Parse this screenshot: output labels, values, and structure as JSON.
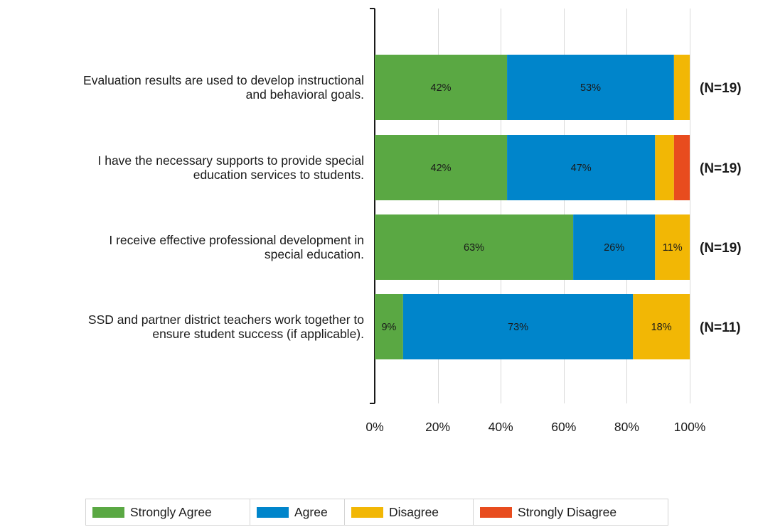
{
  "chart_data": {
    "type": "bar",
    "orientation": "horizontal",
    "stacked": true,
    "categories": [
      [
        "Evaluation results are used to develop instructional",
        "and behavioral goals."
      ],
      [
        "I have the necessary supports to provide special",
        "education services to students."
      ],
      [
        "I receive effective professional development in",
        "special education."
      ],
      [
        "SSD and partner district teachers work together to",
        "ensure student success (if applicable)."
      ]
    ],
    "series": [
      {
        "name": "Strongly Agree",
        "color": "#5aa843",
        "values": [
          42,
          42,
          63,
          9
        ]
      },
      {
        "name": "Agree",
        "color": "#0085cb",
        "values": [
          53,
          47,
          26,
          73
        ]
      },
      {
        "name": "Disagree",
        "color": "#f2b705",
        "values": [
          5,
          6,
          11,
          18
        ]
      },
      {
        "name": "Strongly Disagree",
        "color": "#e84c1e",
        "values": [
          0,
          5,
          0,
          0
        ]
      }
    ],
    "bar_labels": [
      [
        "42%",
        "53%",
        "",
        ""
      ],
      [
        "42%",
        "47%",
        "",
        ""
      ],
      [
        "63%",
        "26%",
        "11%",
        ""
      ],
      [
        "9%",
        "73%",
        "18%",
        ""
      ]
    ],
    "n_labels": [
      "(N=19)",
      "(N=19)",
      "(N=19)",
      "(N=11)"
    ],
    "x_ticks": [
      "0%",
      "20%",
      "40%",
      "60%",
      "80%",
      "100%"
    ],
    "xlim": [
      0,
      100
    ],
    "grid": true,
    "legend_position": "bottom",
    "title": "",
    "xlabel": "",
    "ylabel": ""
  }
}
